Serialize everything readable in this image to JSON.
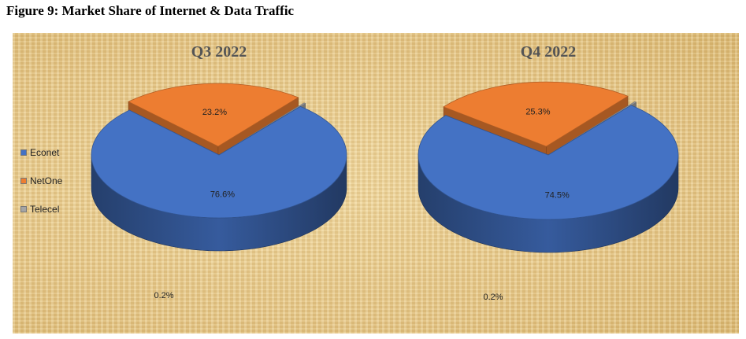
{
  "figure_title": "Figure 9: Market Share of Internet & Data Traffic",
  "legend": [
    {
      "label": "Econet",
      "color": "#4472c4"
    },
    {
      "label": "NetOne",
      "color": "#ed7d31"
    },
    {
      "label": "Telecel",
      "color": "#a5a5a5"
    }
  ],
  "chart_data": [
    {
      "type": "pie",
      "title": "Q3 2022",
      "categories": [
        "Econet",
        "NetOne",
        "Telecel"
      ],
      "values": [
        76.6,
        23.2,
        0.2
      ],
      "labels": [
        "76.6%",
        "23.2%",
        "0.2%"
      ]
    },
    {
      "type": "pie",
      "title": "Q4 2022",
      "categories": [
        "Econet",
        "NetOne",
        "Telecel"
      ],
      "values": [
        74.5,
        25.3,
        0.2
      ],
      "labels": [
        "74.5%",
        "25.3%",
        "0.2%"
      ]
    }
  ]
}
